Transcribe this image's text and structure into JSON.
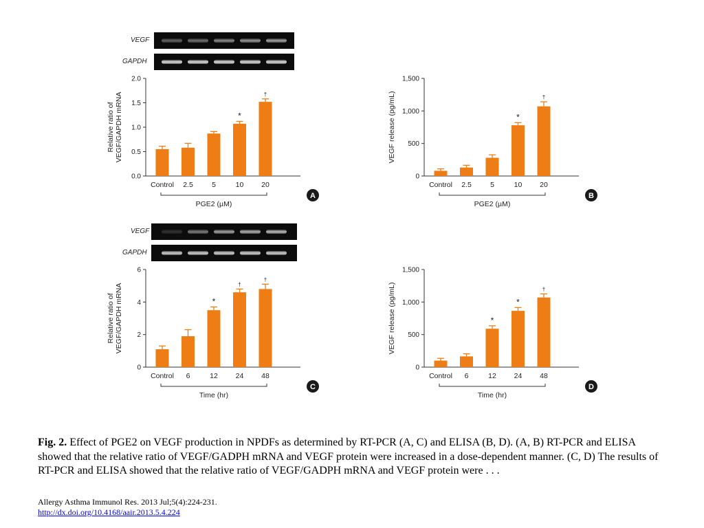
{
  "figure": {
    "blots": [
      {
        "id": "A",
        "rows": [
          {
            "label": "VEGF",
            "intensities": [
              0.35,
              0.4,
              0.5,
              0.55,
              0.6
            ]
          },
          {
            "label": "GAPDH",
            "intensities": [
              0.85,
              0.85,
              0.85,
              0.85,
              0.85
            ]
          }
        ]
      },
      {
        "id": "C",
        "rows": [
          {
            "label": "VEGF",
            "intensities": [
              0.15,
              0.45,
              0.6,
              0.65,
              0.7
            ]
          },
          {
            "label": "GAPDH",
            "intensities": [
              0.8,
              0.8,
              0.8,
              0.8,
              0.8
            ]
          }
        ]
      }
    ]
  },
  "chart_data": [
    {
      "panel": "A",
      "type": "bar",
      "categories": [
        "Control",
        "2.5",
        "5",
        "10",
        "20"
      ],
      "values": [
        0.55,
        0.58,
        0.87,
        1.07,
        1.52
      ],
      "errors": [
        0.06,
        0.09,
        0.04,
        0.05,
        0.06
      ],
      "marks": [
        "",
        "",
        "",
        "*",
        "†"
      ],
      "ylabel_line1": "Relative ratio of",
      "ylabel_line2": "VEGF/GAPDH mRNA",
      "ylim": [
        0,
        2.0
      ],
      "yticks": [
        0,
        0.5,
        1.0,
        1.5,
        2.0
      ],
      "ytick_labels": [
        "0.0",
        "0.5",
        "1.0",
        "1.5",
        "2.0"
      ],
      "group_label": "PGE2 (µM)",
      "color": "#ef7d16"
    },
    {
      "panel": "B",
      "type": "bar",
      "categories": [
        "Control",
        "2.5",
        "5",
        "10",
        "20"
      ],
      "values": [
        80,
        130,
        280,
        780,
        1070
      ],
      "errors": [
        30,
        35,
        45,
        40,
        70
      ],
      "marks": [
        "",
        "",
        "",
        "*",
        "†"
      ],
      "ylabel_line1": "VEGF release (pg/mL)",
      "ylabel_line2": "",
      "ylim": [
        0,
        1500
      ],
      "yticks": [
        0,
        500,
        1000,
        1500
      ],
      "ytick_labels": [
        "0",
        "500",
        "1,000",
        "1,500"
      ],
      "group_label": "PGE2 (µM)",
      "color": "#ef7d16"
    },
    {
      "panel": "C",
      "type": "bar",
      "categories": [
        "Control",
        "6",
        "12",
        "24",
        "48"
      ],
      "values": [
        1.1,
        1.9,
        3.5,
        4.6,
        4.8
      ],
      "errors": [
        0.2,
        0.4,
        0.2,
        0.2,
        0.3
      ],
      "marks": [
        "",
        "",
        "*",
        "†",
        "†"
      ],
      "ylabel_line1": "Relative ratio of",
      "ylabel_line2": "VEGF/GAPDH mRNA",
      "ylim": [
        0,
        6
      ],
      "yticks": [
        0,
        2,
        4,
        6
      ],
      "ytick_labels": [
        "0",
        "2",
        "4",
        "6"
      ],
      "group_label": "Time (hr)",
      "color": "#ef7d16"
    },
    {
      "panel": "D",
      "type": "bar",
      "categories": [
        "Control",
        "6",
        "12",
        "24",
        "48"
      ],
      "values": [
        100,
        165,
        590,
        865,
        1070
      ],
      "errors": [
        35,
        40,
        45,
        50,
        55
      ],
      "marks": [
        "",
        "",
        "*",
        "*",
        "†"
      ],
      "ylabel_line1": "VEGF release (pg/mL)",
      "ylabel_line2": "",
      "ylim": [
        0,
        1500
      ],
      "yticks": [
        0,
        500,
        1000,
        1500
      ],
      "ytick_labels": [
        "0",
        "500",
        "1,000",
        "1,500"
      ],
      "group_label": "Time (hr)",
      "color": "#ef7d16"
    }
  ],
  "caption": {
    "figure_number": "Fig. 2.",
    "text": " Effect of PGE2 on VEGF production in NPDFs as determined by RT-PCR (A, C) and ELISA (B, D). (A, B) RT-PCR and ELISA showed that the relative ratio of VEGF/GADPH mRNA and VEGF protein were increased in a dose-dependent manner. (C, D) The results of RT-PCR and ELISA showed that the relative ratio of VEGF/GADPH mRNA and VEGF protein were . . ."
  },
  "citation": {
    "journal": "Allergy Asthma Immunol Res. 2013 Jul;5(4):224-231.",
    "doi_link": "http://dx.doi.org/10.4168/aair.2013.5.4.224"
  },
  "colors": {
    "bar": "#ef7d16",
    "badge": "#1a1a1a"
  }
}
